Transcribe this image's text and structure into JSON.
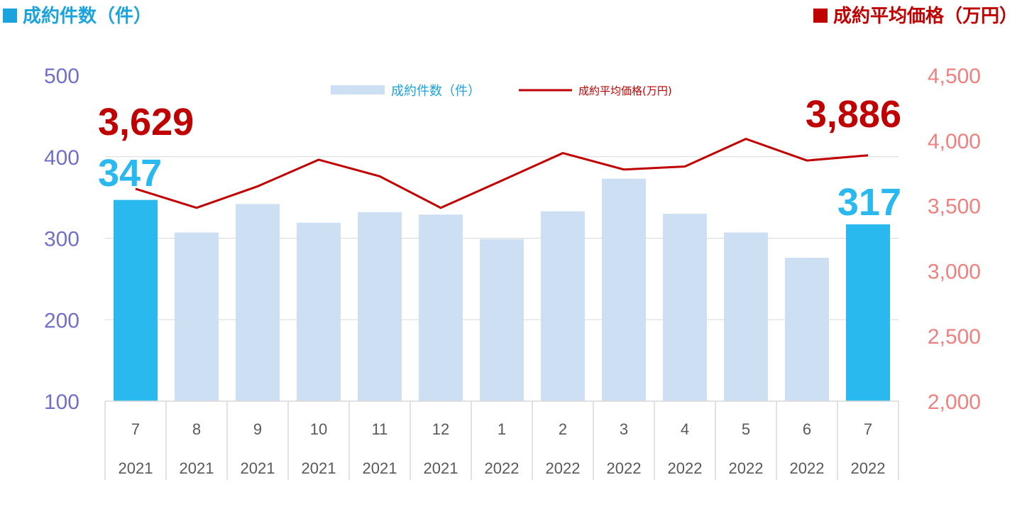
{
  "header": {
    "left_title": "成約件数（件）",
    "right_title": "成約平均価格（万円）",
    "left_color": "#1aa3dc",
    "right_color": "#c00000"
  },
  "legend": {
    "bar_label": "成約件数（件）",
    "line_label": "成約平均価格(万円)",
    "placement": "top-center"
  },
  "chart_data": {
    "type": "bar",
    "categories": [
      {
        "month": "7",
        "year": "2021"
      },
      {
        "month": "8",
        "year": "2021"
      },
      {
        "month": "9",
        "year": "2021"
      },
      {
        "month": "10",
        "year": "2021"
      },
      {
        "month": "11",
        "year": "2021"
      },
      {
        "month": "12",
        "year": "2021"
      },
      {
        "month": "1",
        "year": "2022"
      },
      {
        "month": "2",
        "year": "2022"
      },
      {
        "month": "3",
        "year": "2022"
      },
      {
        "month": "4",
        "year": "2022"
      },
      {
        "month": "5",
        "year": "2022"
      },
      {
        "month": "6",
        "year": "2022"
      },
      {
        "month": "7",
        "year": "2022"
      }
    ],
    "series": [
      {
        "name": "成約件数（件）",
        "type": "bar",
        "axis": "left",
        "values": [
          347,
          307,
          342,
          319,
          332,
          329,
          299,
          333,
          373,
          330,
          307,
          276,
          317
        ],
        "highlight_indices": [
          0,
          12
        ]
      },
      {
        "name": "成約平均価格(万円)",
        "type": "line",
        "axis": "right",
        "values": [
          3629,
          3483,
          3648,
          3852,
          3725,
          3483,
          3692,
          3903,
          3777,
          3800,
          4012,
          3846,
          3886
        ]
      }
    ],
    "y_left": {
      "min": 100,
      "max": 500,
      "ticks": [
        "100",
        "200",
        "300",
        "400",
        "500"
      ]
    },
    "y_right": {
      "min": 2000,
      "max": 4500,
      "ticks": [
        "2,000",
        "2,500",
        "3,000",
        "3,500",
        "4,000",
        "4,500"
      ]
    },
    "data_labels": {
      "bar_first": "347",
      "bar_last": "317",
      "line_first": "3,629",
      "line_last": "3,886"
    },
    "grid": true,
    "colors": {
      "bar": "#cddff3",
      "bar_highlight": "#29b9ef",
      "line": "#c00000",
      "left_axis": "#7070c8",
      "right_axis": "#f08080",
      "grid": "#d9d9d9",
      "category_text": "#595959"
    }
  }
}
